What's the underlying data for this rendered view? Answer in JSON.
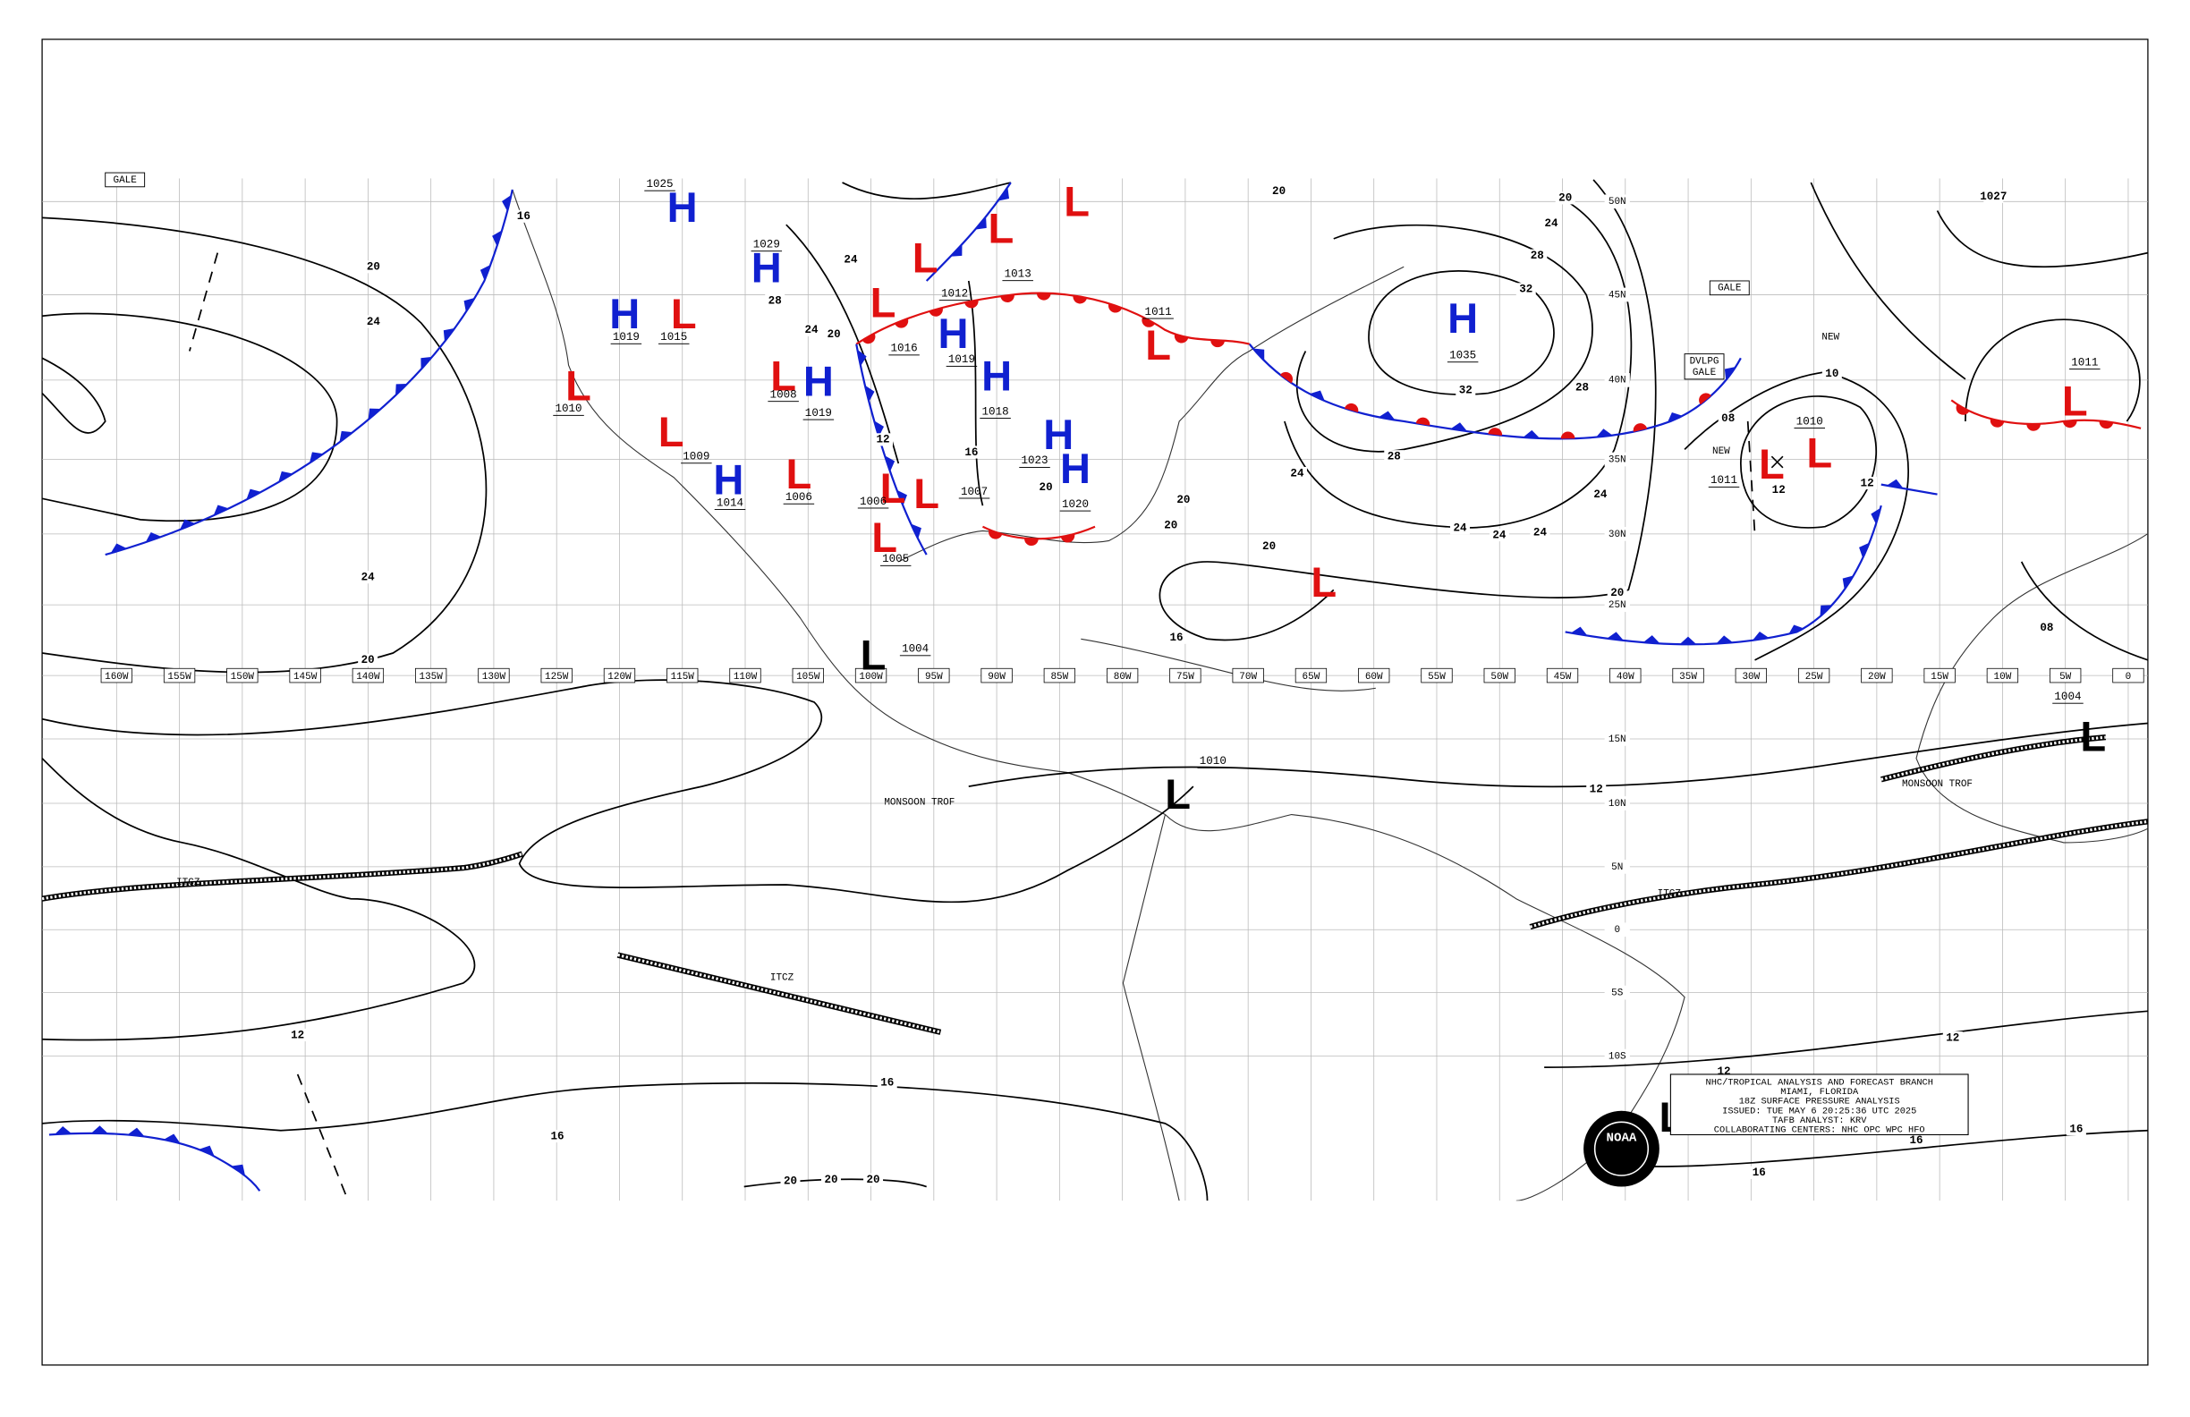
{
  "map": {
    "lon_ticks": [
      {
        "value": -160,
        "label": "160W"
      },
      {
        "value": -155,
        "label": "155W"
      },
      {
        "value": -150,
        "label": "150W"
      },
      {
        "value": -145,
        "label": "145W"
      },
      {
        "value": -140,
        "label": "140W"
      },
      {
        "value": -135,
        "label": "135W"
      },
      {
        "value": -130,
        "label": "130W"
      },
      {
        "value": -125,
        "label": "125W"
      },
      {
        "value": -120,
        "label": "120W"
      },
      {
        "value": -115,
        "label": "115W"
      },
      {
        "value": -110,
        "label": "110W"
      },
      {
        "value": -105,
        "label": "105W"
      },
      {
        "value": -100,
        "label": "100W"
      },
      {
        "value": -95,
        "label": "95W"
      },
      {
        "value": -90,
        "label": "90W"
      },
      {
        "value": -85,
        "label": "85W"
      },
      {
        "value": -80,
        "label": "80W"
      },
      {
        "value": -75,
        "label": "75W"
      },
      {
        "value": -70,
        "label": "70W"
      },
      {
        "value": -65,
        "label": "65W"
      },
      {
        "value": -60,
        "label": "60W"
      },
      {
        "value": -55,
        "label": "55W"
      },
      {
        "value": -50,
        "label": "50W"
      },
      {
        "value": -45,
        "label": "45W"
      },
      {
        "value": -40,
        "label": "40W"
      },
      {
        "value": -35,
        "label": "35W"
      },
      {
        "value": -30,
        "label": "30W"
      },
      {
        "value": -25,
        "label": "25W"
      },
      {
        "value": -20,
        "label": "20W"
      },
      {
        "value": -15,
        "label": "15W"
      },
      {
        "value": -10,
        "label": "10W"
      },
      {
        "value": -5,
        "label": "5W"
      },
      0
    ],
    "lat_ticks": [
      {
        "value": 50,
        "label": "50N"
      },
      {
        "value": 45,
        "label": "45N"
      },
      {
        "value": 40,
        "label": "40N"
      },
      {
        "value": 35,
        "label": "35N"
      },
      {
        "value": 30,
        "label": "30N"
      },
      {
        "value": 25,
        "label": "25N"
      },
      {
        "value": 15,
        "label": "15N"
      },
      {
        "value": 10,
        "label": "10N"
      },
      {
        "value": 5,
        "label": "5N"
      },
      0,
      {
        "value": -5,
        "label": "5S"
      },
      {
        "value": -10,
        "label": "10S"
      }
    ],
    "pressure_centers": [
      {
        "symbol": "H",
        "color": "#1020d0",
        "value": 1025
      },
      {
        "symbol": "H",
        "color": "#1020d0",
        "value": 1029
      },
      {
        "symbol": "H",
        "color": "#1020d0",
        "value": 1019
      },
      {
        "symbol": "L",
        "color": "#e01010",
        "value": 1015
      },
      {
        "symbol": "L",
        "color": "#e01010",
        "value": 1010
      },
      {
        "symbol": "L",
        "color": "#e01010",
        "value": 1009
      },
      {
        "symbol": "H",
        "color": "#1020d0",
        "value": 1014
      },
      {
        "symbol": "L",
        "color": "#e01010",
        "value": 1008
      },
      {
        "symbol": "H",
        "color": "#1020d0",
        "value": 1019
      },
      {
        "symbol": "L",
        "color": "#e01010",
        "value": 1016
      },
      {
        "symbol": "L",
        "color": "#e01010",
        "value": 1012
      },
      {
        "symbol": "H",
        "color": "#1020d0",
        "value": 1019
      },
      {
        "symbol": "H",
        "color": "#1020d0",
        "value": 1018
      },
      {
        "symbol": "L",
        "color": "#e01010",
        "value": 1013
      },
      {
        "symbol": "L",
        "color": "#e01010",
        "value": 1011
      },
      {
        "symbol": "H",
        "color": "#1020d0",
        "value": 1023
      },
      {
        "symbol": "H",
        "color": "#1020d0",
        "value": 1020
      },
      {
        "symbol": "L",
        "color": "#e01010",
        "value": 1006
      },
      {
        "symbol": "L",
        "color": "#e01010",
        "value": 1007
      },
      {
        "symbol": "L",
        "color": "#e01010",
        "value": 1005
      },
      {
        "symbol": "L",
        "color": "#000000",
        "value": 1004
      },
      {
        "symbol": "H",
        "color": "#1020d0",
        "value": 1035
      },
      {
        "symbol": "L",
        "color": "#000000",
        "value": 1010
      },
      {
        "symbol": "L",
        "color": "#e01010",
        "value": 1011
      },
      {
        "symbol": "L",
        "color": "#e01010",
        "value": 1010
      },
      {
        "symbol": "L",
        "color": "#e01010",
        "value": 1011
      },
      {
        "symbol": "L",
        "color": "#000000",
        "value": 1004
      },
      {
        "symbol": "L",
        "color": "#e01010",
        "value": 1006
      },
      {
        "symbol": "L",
        "color": "#e01010"
      },
      {
        "symbol": "L",
        "color": "#e01010"
      },
      {
        "symbol": "L",
        "color": "#e01010"
      },
      {
        "symbol": "L",
        "color": "#000000"
      }
    ],
    "isobar_labels": [
      20,
      24,
      24,
      20,
      16,
      12,
      16,
      16,
      20,
      20,
      20,
      12,
      12,
      16,
      16,
      16,
      12,
      20,
      24,
      28,
      32,
      32,
      28,
      28,
      24,
      24,
      24,
      24,
      20,
      20,
      16,
      20,
      12,
      12,
      10,
      "08",
      24,
      24,
      28,
      24,
      20,
      16,
      12,
      20,
      20,
      20,
      "08",
      1027
    ],
    "annotations": [
      "GALE",
      "GALE",
      "DVLPG",
      "GALE",
      "NEW",
      "NEW",
      "ITCZ",
      "ITCZ",
      "ITCZ",
      "MONSOON TROF",
      "MONSOON TROF"
    ]
  },
  "title_block": {
    "lines": [
      "NHC/TROPICAL ANALYSIS AND FORECAST BRANCH",
      "MIAMI, FLORIDA",
      "18Z SURFACE PRESSURE ANALYSIS",
      "ISSUED: TUE MAY 6 20:25:36 UTC 2025",
      "TAFB ANALYST: KRV",
      "COLLABORATING CENTERS: NHC OPC WPC HFO"
    ],
    "logo_text": "NOAA"
  }
}
